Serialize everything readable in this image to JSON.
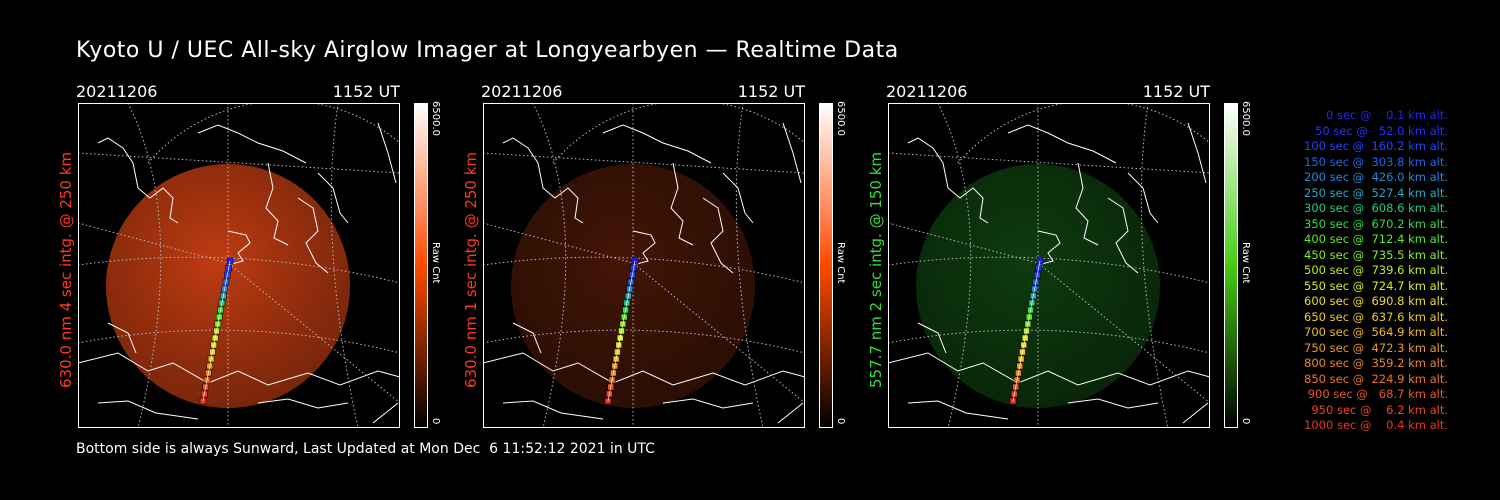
{
  "title": "Kyoto U / UEC All-sky Airglow Imager at Longyearbyen — Realtime Data",
  "footer": "Bottom side is always Sunward, Last Updated at Mon Dec  6 11:52:12 2021 in UTC",
  "panels": [
    {
      "date": "20211206",
      "time": "1152 UT",
      "side_label": "630.0 nm 4 sec intg. @ 250 km",
      "label_color": "#ff3a1a",
      "colorbar_max": "6500.0",
      "colorbar_min": "0",
      "colorbar_unit": "Raw Cnt",
      "colorbar_color": "#ff5a10",
      "emission_level": 0.85
    },
    {
      "date": "20211206",
      "time": "1152 UT",
      "side_label": "630.0 nm 1 sec intg. @ 250 km",
      "label_color": "#ff3a1a",
      "colorbar_max": "6500.0",
      "colorbar_min": "0",
      "colorbar_unit": "Raw Cnt",
      "colorbar_color": "#ff5a10",
      "emission_level": 0.3
    },
    {
      "date": "20211206",
      "time": "1152 UT",
      "side_label": "557.7 nm 2 sec intg. @ 150 km",
      "label_color": "#33dd33",
      "colorbar_max": "6500.0",
      "colorbar_min": "0",
      "colorbar_unit": "Raw Cnt",
      "colorbar_color": "#44cc11",
      "emission_level": 0.35
    }
  ],
  "legend": [
    {
      "text": "0 sec @    0.1 km alt.",
      "color": "#2222ff"
    },
    {
      "text": "50 sec @   52.0 km alt.",
      "color": "#2233ff"
    },
    {
      "text": "100 sec @  160.2 km alt.",
      "color": "#2244ff"
    },
    {
      "text": "150 sec @  303.8 km alt.",
      "color": "#2266ee"
    },
    {
      "text": "200 sec @  426.0 km alt.",
      "color": "#2288dd"
    },
    {
      "text": "250 sec @  527.4 km alt.",
      "color": "#22aacc"
    },
    {
      "text": "300 sec @  608.6 km alt.",
      "color": "#22cc88"
    },
    {
      "text": "350 sec @  670.2 km alt.",
      "color": "#33dd44"
    },
    {
      "text": "400 sec @  712.4 km alt.",
      "color": "#55ee22"
    },
    {
      "text": "450 sec @  735.5 km alt.",
      "color": "#88ee22"
    },
    {
      "text": "500 sec @  739.6 km alt.",
      "color": "#bbee22"
    },
    {
      "text": "550 sec @  724.7 km alt.",
      "color": "#ddee22"
    },
    {
      "text": "600 sec @  690.8 km alt.",
      "color": "#eedd22"
    },
    {
      "text": "650 sec @  637.6 km alt.",
      "color": "#eecc22"
    },
    {
      "text": "700 sec @  564.9 km alt.",
      "color": "#eebb22"
    },
    {
      "text": "750 sec @  472.3 km alt.",
      "color": "#ee9922"
    },
    {
      "text": "800 sec @  359.2 km alt.",
      "color": "#ee8822"
    },
    {
      "text": "850 sec @  224.9 km alt.",
      "color": "#ee7722"
    },
    {
      "text": "900 sec @   68.7 km alt.",
      "color": "#ee5522"
    },
    {
      "text": "950 sec @    6.2 km alt.",
      "color": "#ee4422"
    },
    {
      "text": "1000 sec @    0.4 km alt.",
      "color": "#ee3322"
    }
  ]
}
